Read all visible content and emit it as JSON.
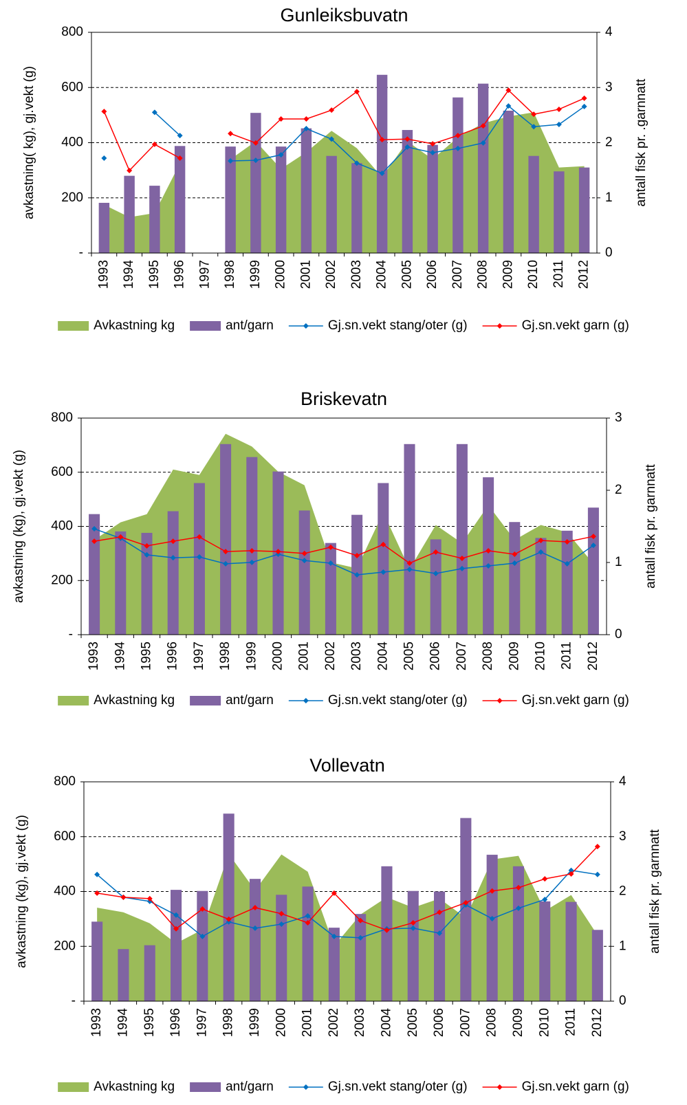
{
  "chart_data": [
    {
      "type": "combo",
      "title": "Gunleiksbuvatn",
      "y_label": "avkastning( kg), gj.vekt (g)",
      "y2_label": "antall fisk pr. .garnnatt",
      "categories": [
        "1993",
        "1994",
        "1995",
        "1996",
        "1997",
        "1998",
        "1999",
        "2000",
        "2001",
        "2002",
        "2003",
        "2004",
        "2005",
        "2006",
        "2007",
        "2008",
        "2009",
        "2010",
        "2011",
        "2012"
      ],
      "ylim": [
        0,
        800
      ],
      "yticks": [
        {
          "value": 0,
          "label": "-"
        },
        200,
        400,
        600,
        800
      ],
      "y2lim": [
        0,
        4
      ],
      "y2ticks": [
        0,
        1,
        2,
        3,
        4
      ],
      "grid": true,
      "series": [
        {
          "name": "Avkastning kg",
          "type": "area",
          "color": "#9bbb59",
          "values": [
            175,
            130,
            145,
            325,
            null,
            340,
            405,
            305,
            365,
            443,
            380,
            275,
            405,
            340,
            420,
            470,
            495,
            510,
            310,
            315
          ]
        },
        {
          "name": "ant/garn",
          "type": "bar",
          "axis": "y2",
          "color": "#8064a2",
          "values": [
            0.91,
            1.4,
            1.22,
            1.94,
            null,
            1.93,
            2.54,
            1.93,
            2.26,
            1.76,
            1.63,
            3.23,
            2.23,
            1.96,
            2.82,
            3.07,
            2.58,
            1.76,
            1.48,
            1.55
          ]
        },
        {
          "name": "Gj.sn.vekt stang/oter (g)",
          "type": "line",
          "color": "#0070c0",
          "values": [
            344,
            null,
            510,
            426,
            null,
            334,
            336,
            356,
            451,
            413,
            326,
            289,
            384,
            364,
            379,
            399,
            533,
            458,
            466,
            531
          ]
        },
        {
          "name": "Gj.sn.vekt garn (g)",
          "type": "line",
          "color": "#ff0000",
          "values": [
            513,
            299,
            394,
            344,
            null,
            433,
            399,
            486,
            486,
            518,
            585,
            411,
            413,
            396,
            426,
            461,
            590,
            503,
            521,
            561
          ]
        }
      ]
    },
    {
      "type": "combo",
      "title": "Briskevatn",
      "y_label": "avkastning (kg), gj.vekt (g)",
      "y2_label": "antall fisk pr. garnnatt",
      "categories": [
        "1993",
        "1994",
        "1995",
        "1996",
        "1997",
        "1998",
        "1999",
        "2000",
        "2001",
        "2002",
        "2003",
        "2004",
        "2005",
        "2006",
        "2007",
        "2008",
        "2009",
        "2010",
        "2011",
        "2012"
      ],
      "ylim": [
        0,
        800
      ],
      "yticks": [
        {
          "value": 0,
          "label": "-"
        },
        200,
        400,
        600,
        800
      ],
      "y2lim": [
        0,
        3
      ],
      "y2ticks": [
        0,
        1,
        2,
        3
      ],
      "grid": true,
      "series": [
        {
          "name": "Avkastning kg",
          "type": "area",
          "color": "#9bbb59",
          "values": [
            350,
            415,
            445,
            610,
            590,
            742,
            695,
            602,
            552,
            267,
            245,
            452,
            242,
            405,
            338,
            478,
            350,
            405,
            378,
            262
          ]
        },
        {
          "name": "ant/garn",
          "type": "bar",
          "axis": "y2",
          "color": "#8064a2",
          "values": [
            1.67,
            1.43,
            1.41,
            1.71,
            2.1,
            2.64,
            2.46,
            2.26,
            1.72,
            1.27,
            1.66,
            2.1,
            2.64,
            1.32,
            2.64,
            2.18,
            1.56,
            1.34,
            1.44,
            1.76
          ]
        },
        {
          "name": "Gj.sn.vekt stang/oter (g)",
          "type": "line",
          "color": "#0070c0",
          "values": [
            391,
            356,
            295,
            284,
            287,
            262,
            267,
            297,
            274,
            264,
            221,
            231,
            241,
            226,
            244,
            254,
            264,
            305,
            262,
            330
          ]
        },
        {
          "name": "Gj.sn.vekt garn (g)",
          "type": "line",
          "color": "#ff0000",
          "values": [
            345,
            361,
            328,
            345,
            361,
            307,
            310,
            307,
            300,
            323,
            292,
            333,
            264,
            305,
            282,
            310,
            297,
            348,
            343,
            363
          ]
        }
      ]
    },
    {
      "type": "combo",
      "title": "Vollevatn",
      "y_label": "avkastning (kg), gj.vekt (g)",
      "y2_label": "antall fisk pr. garnnatt",
      "categories": [
        "1993",
        "1994",
        "1995",
        "1996",
        "1997",
        "1998",
        "1999",
        "2000",
        "2001",
        "2002",
        "2003",
        "2004",
        "2005",
        "2006",
        "2007",
        "2008",
        "2009",
        "2010",
        "2011",
        "2012"
      ],
      "ylim": [
        0,
        800
      ],
      "yticks": [
        {
          "value": 0,
          "label": "-"
        },
        200,
        400,
        600,
        800
      ],
      "y2lim": [
        0,
        4
      ],
      "y2ticks": [
        0,
        1,
        2,
        3,
        4
      ],
      "grid": true,
      "series": [
        {
          "name": "Avkastning kg",
          "type": "area",
          "color": "#9bbb59",
          "values": [
            341,
            324,
            284,
            211,
            261,
            537,
            404,
            535,
            472,
            201,
            316,
            379,
            341,
            374,
            304,
            517,
            530,
            329,
            387,
            241
          ]
        },
        {
          "name": "ant/garn",
          "type": "bar",
          "axis": "y2",
          "color": "#8064a2",
          "values": [
            1.45,
            0.95,
            1.02,
            2.03,
            2.01,
            3.42,
            2.23,
            1.94,
            2.09,
            1.34,
            1.59,
            2.46,
            2.01,
            2.0,
            3.34,
            2.67,
            2.46,
            1.82,
            1.81,
            1.3
          ]
        },
        {
          "name": "Gj.sn.vekt stang/oter (g)",
          "type": "line",
          "color": "#0070c0",
          "values": [
            462,
            379,
            364,
            314,
            236,
            289,
            266,
            281,
            311,
            236,
            231,
            264,
            266,
            248,
            351,
            301,
            339,
            371,
            477,
            462
          ]
        },
        {
          "name": "Gj.sn.vekt garn (g)",
          "type": "line",
          "color": "#ff0000",
          "values": [
            394,
            379,
            374,
            264,
            336,
            299,
            341,
            319,
            286,
            394,
            294,
            259,
            286,
            324,
            359,
            402,
            414,
            446,
            464,
            564
          ]
        }
      ]
    }
  ]
}
